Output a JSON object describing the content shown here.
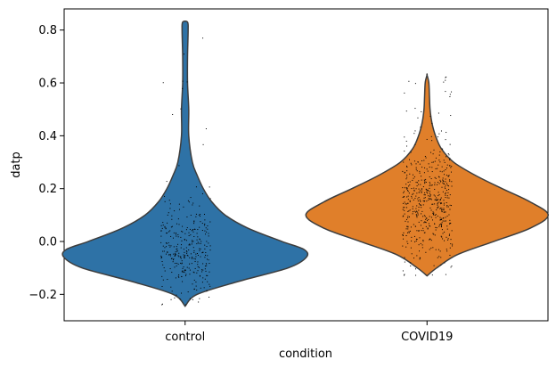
{
  "chart_data": {
    "type": "violin",
    "title": "",
    "xlabel": "condition",
    "ylabel": "datp",
    "ylim": [
      -0.3,
      0.88
    ],
    "yticks": [
      -0.2,
      0.0,
      0.2,
      0.4,
      0.6,
      0.8
    ],
    "ytick_labels": [
      "−0.2",
      "0.0",
      "0.2",
      "0.4",
      "0.6",
      "0.8"
    ],
    "categories": [
      "control",
      "COVID19"
    ],
    "grid": false,
    "series": [
      {
        "category": "control",
        "color": "#2e72a6",
        "min": -0.245,
        "max": 0.83,
        "density_profile": [
          [
            -0.245,
            0.0
          ],
          [
            -0.2,
            0.1
          ],
          [
            -0.15,
            0.45
          ],
          [
            -0.1,
            0.85
          ],
          [
            -0.06,
            1.0
          ],
          [
            -0.03,
            0.98
          ],
          [
            0.0,
            0.8
          ],
          [
            0.05,
            0.52
          ],
          [
            0.1,
            0.33
          ],
          [
            0.15,
            0.22
          ],
          [
            0.2,
            0.15
          ],
          [
            0.25,
            0.1
          ],
          [
            0.3,
            0.06
          ],
          [
            0.4,
            0.03
          ],
          [
            0.5,
            0.03
          ],
          [
            0.6,
            0.02
          ],
          [
            0.7,
            0.02
          ],
          [
            0.8,
            0.025
          ],
          [
            0.83,
            0.02
          ]
        ],
        "points_center": -0.03,
        "points_spread": 0.09,
        "points_count": 320
      },
      {
        "category": "COVID19",
        "color": "#e07f2a",
        "min": -0.13,
        "max": 0.63,
        "density_profile": [
          [
            -0.13,
            0.0
          ],
          [
            -0.1,
            0.08
          ],
          [
            -0.05,
            0.25
          ],
          [
            0.0,
            0.55
          ],
          [
            0.05,
            0.85
          ],
          [
            0.1,
            1.0
          ],
          [
            0.15,
            0.85
          ],
          [
            0.2,
            0.62
          ],
          [
            0.25,
            0.4
          ],
          [
            0.3,
            0.22
          ],
          [
            0.35,
            0.12
          ],
          [
            0.4,
            0.07
          ],
          [
            0.45,
            0.04
          ],
          [
            0.5,
            0.025
          ],
          [
            0.55,
            0.02
          ],
          [
            0.6,
            0.015
          ],
          [
            0.63,
            0.0
          ]
        ],
        "points_center": 0.14,
        "points_spread": 0.11,
        "points_count": 520
      }
    ]
  }
}
